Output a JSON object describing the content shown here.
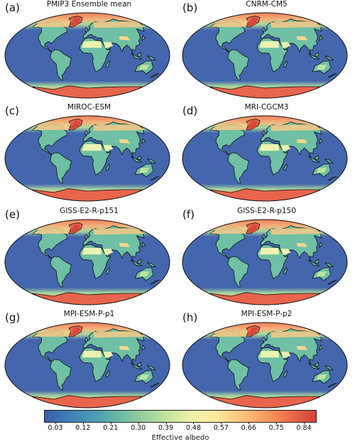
{
  "panels": [
    {
      "label": "(a)",
      "title": "PMIP3 Ensemble mean"
    },
    {
      "label": "(b)",
      "title": "CNRM-CM5"
    },
    {
      "label": "(c)",
      "title": "MIROC-ESM"
    },
    {
      "label": "(d)",
      "title": "MRI-CGCM3"
    },
    {
      "label": "(e)",
      "title": "GISS-E2-R-p151"
    },
    {
      "label": "(f)",
      "title": "GISS-E2-R-p150"
    },
    {
      "label": "(g)",
      "title": "MPI-ESM-P-p1"
    },
    {
      "label": "(h)",
      "title": "MPI-ESM-P-p2"
    }
  ],
  "colorbar": {
    "label": "Effective albedo",
    "ticks": [
      "0.03",
      "0.12",
      "0.21",
      "0.30",
      "0.39",
      "0.48",
      "0.57",
      "0.66",
      "0.75",
      "0.84"
    ],
    "colors": [
      "#3b5fa8",
      "#3f7eb8",
      "#4a9cb4",
      "#6bb8a4",
      "#98d09f",
      "#c5e49f",
      "#eef3a8",
      "#fde89a",
      "#fcc27a",
      "#f69a5e",
      "#ea6a4a",
      "#d3403c"
    ]
  },
  "colors": {
    "ocean": "#4466ad",
    "land": "#6fc0a4",
    "ice": "#e8644c",
    "snow": "#f7c986",
    "desert": "#ecf2b0"
  }
}
